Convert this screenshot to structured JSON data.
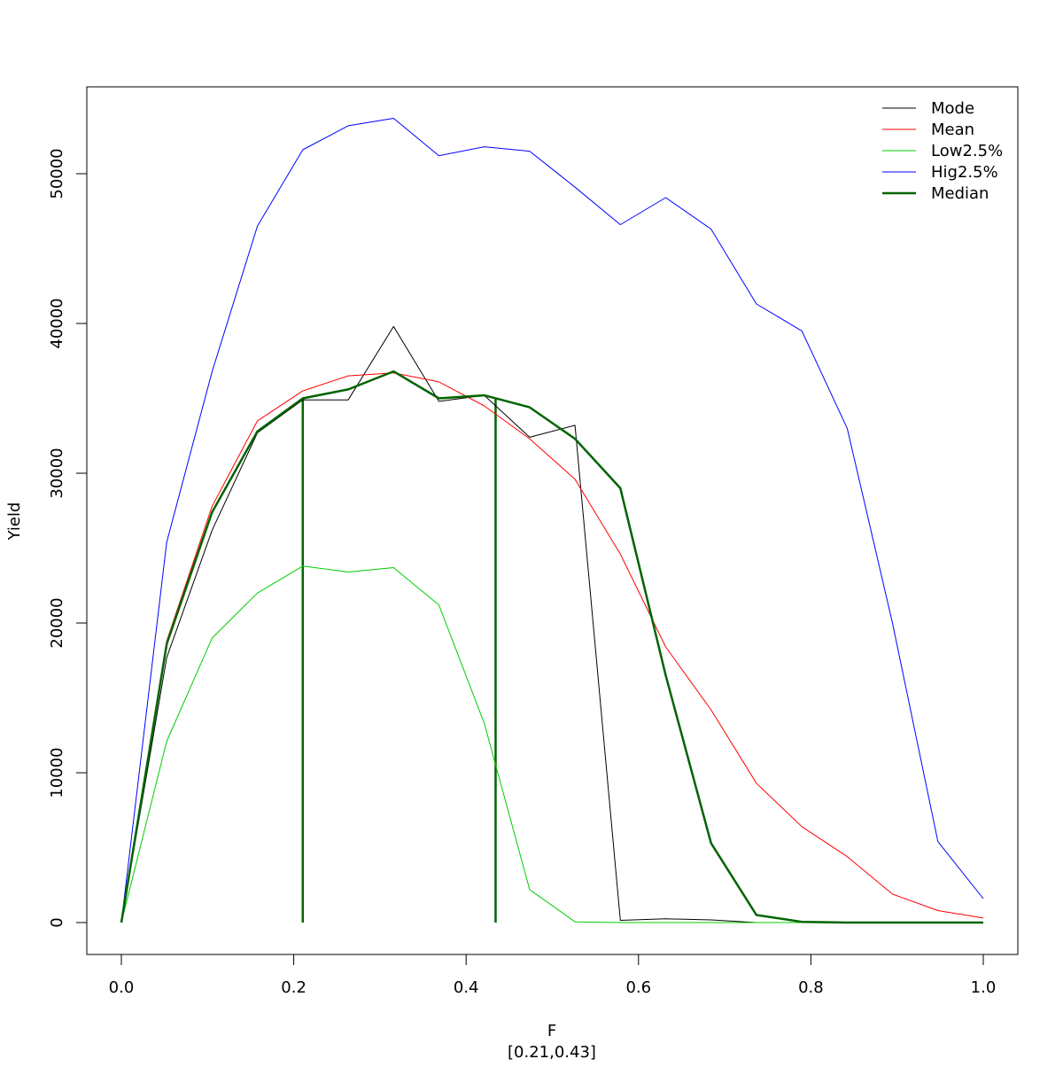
{
  "chart_data": {
    "type": "line",
    "xlabel": "F",
    "subtitle": "[0.21,0.43]",
    "ylabel": "Yield",
    "xlim": [
      0,
      1
    ],
    "ylim": [
      0,
      54000
    ],
    "x_ticks": [
      0.0,
      0.2,
      0.4,
      0.6,
      0.8,
      1.0
    ],
    "x_tick_labels": [
      "0.0",
      "0.2",
      "0.4",
      "0.6",
      "0.8",
      "1.0"
    ],
    "y_ticks": [
      0,
      10000,
      20000,
      30000,
      40000,
      50000
    ],
    "y_tick_labels": [
      "0",
      "10000",
      "20000",
      "30000",
      "40000",
      "50000"
    ],
    "x": [
      0,
      0.0526,
      0.1053,
      0.1579,
      0.2105,
      0.2632,
      0.3158,
      0.3684,
      0.4211,
      0.4737,
      0.5263,
      0.5789,
      0.6316,
      0.6842,
      0.7368,
      0.7895,
      0.8421,
      0.8947,
      0.9474,
      1.0
    ],
    "series": [
      {
        "name": "Mode",
        "color": "#000000",
        "width": 1,
        "values": [
          0,
          17700,
          26200,
          32700,
          34900,
          34900,
          39800,
          34800,
          35200,
          32400,
          33200,
          150,
          250,
          180,
          0,
          0,
          0,
          0,
          0,
          0
        ]
      },
      {
        "name": "Mean",
        "color": "#ff0000",
        "width": 1,
        "values": [
          0,
          18800,
          27800,
          33500,
          35500,
          36500,
          36700,
          36100,
          34500,
          32300,
          29600,
          24600,
          18400,
          14200,
          9300,
          6400,
          4400,
          1900,
          800,
          300
        ]
      },
      {
        "name": "Low2.5%",
        "color": "#00cc00",
        "width": 1,
        "values": [
          0,
          12100,
          19000,
          22000,
          23800,
          23400,
          23700,
          21200,
          13300,
          2200,
          50,
          0,
          0,
          0,
          0,
          0,
          0,
          0,
          0,
          0
        ]
      },
      {
        "name": "Hig2.5%",
        "color": "#0000ff",
        "width": 1,
        "values": [
          0,
          25400,
          36800,
          46500,
          51600,
          53200,
          53700,
          51200,
          51800,
          51500,
          49100,
          46600,
          48400,
          46300,
          41300,
          39500,
          33000,
          20000,
          5400,
          1600
        ]
      },
      {
        "name": "Median",
        "color": "#006400",
        "width": 2.5,
        "values": [
          0,
          18600,
          27400,
          32800,
          35000,
          35600,
          36800,
          35000,
          35200,
          34400,
          32300,
          29000,
          16500,
          5300,
          500,
          50,
          0,
          0,
          0,
          0
        ]
      }
    ],
    "reference_lines": [
      {
        "x": 0.2105,
        "y_from": 0,
        "y_to": 35000,
        "color": "#006400"
      },
      {
        "x": 0.4342,
        "y_from": 0,
        "y_to": 35000,
        "color": "#006400"
      }
    ],
    "legend_position": "top-right",
    "grid": false
  }
}
